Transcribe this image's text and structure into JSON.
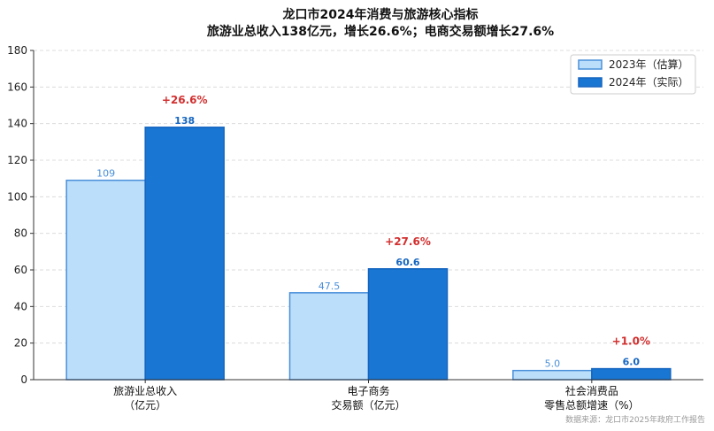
{
  "chart_data": {
    "type": "bar",
    "title_lines": [
      "龙口市2024年消费与旅游核心指标",
      "旅游业总收入138亿元，增长26.6%；电商交易额增长27.6%"
    ],
    "categories": [
      [
        "旅游业总收入",
        "（亿元）"
      ],
      [
        "电子商务",
        "交易额（亿元）"
      ],
      [
        "社会消费品",
        "零售总额增速（%）"
      ]
    ],
    "series": [
      {
        "name": "2023年（估算）",
        "values": [
          109,
          47.5,
          5.0
        ],
        "labels": [
          "109",
          "47.5",
          "5.0"
        ],
        "color": "#bbdefb",
        "edge": "#4a90d9"
      },
      {
        "name": "2024年（实际）",
        "values": [
          138,
          60.6,
          6.0
        ],
        "labels": [
          "138",
          "60.6",
          "6.0"
        ],
        "color": "#1976d2",
        "edge": "#1565c0"
      }
    ],
    "growth_labels": [
      "+26.6%",
      "+27.6%",
      "+1.0%"
    ],
    "ylim": [
      0,
      180
    ],
    "yticks": [
      0,
      20,
      40,
      60,
      80,
      100,
      120,
      140,
      160,
      180
    ],
    "grid": true,
    "legend_position": "top-right",
    "source": "数据来源：龙口市2025年政府工作报告"
  }
}
